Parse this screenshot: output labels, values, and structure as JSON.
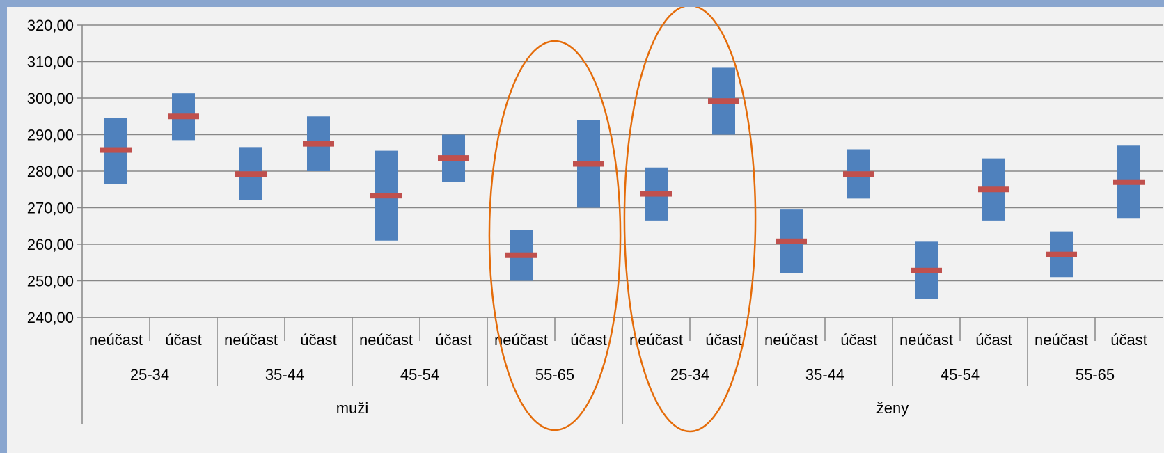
{
  "chart_data": {
    "type": "box",
    "title": "",
    "xlabel": "",
    "ylabel": "",
    "ylim": [
      240,
      320
    ],
    "yticks": [
      "240,00",
      "250,00",
      "260,00",
      "270,00",
      "280,00",
      "290,00",
      "300,00",
      "310,00",
      "320,00"
    ],
    "ytick_values": [
      240,
      250,
      260,
      270,
      280,
      290,
      300,
      310,
      320
    ],
    "grid": true,
    "groups": [
      {
        "label": "muži",
        "age_groups": [
          {
            "label": "25-34",
            "bars": [
              {
                "label": "neúčast",
                "low": 276.5,
                "high": 294.5,
                "mean": 285.8
              },
              {
                "label": "účast",
                "low": 288.5,
                "high": 301.3,
                "mean": 295.0
              }
            ]
          },
          {
            "label": "35-44",
            "bars": [
              {
                "label": "neúčast",
                "low": 272.0,
                "high": 286.6,
                "mean": 279.2
              },
              {
                "label": "účast",
                "low": 280.0,
                "high": 295.0,
                "mean": 287.5
              }
            ]
          },
          {
            "label": "45-54",
            "bars": [
              {
                "label": "neúčast",
                "low": 261.0,
                "high": 285.6,
                "mean": 273.3
              },
              {
                "label": "účast",
                "low": 277.0,
                "high": 290.0,
                "mean": 283.6
              }
            ]
          },
          {
            "label": "55-65",
            "bars": [
              {
                "label": "neúčast",
                "low": 250.0,
                "high": 264.0,
                "mean": 257.0
              },
              {
                "label": "účast",
                "low": 270.0,
                "high": 294.0,
                "mean": 282.0
              }
            ]
          }
        ]
      },
      {
        "label": "ženy",
        "age_groups": [
          {
            "label": "25-34",
            "bars": [
              {
                "label": "neúčast",
                "low": 266.5,
                "high": 281.0,
                "mean": 273.8
              },
              {
                "label": "účast",
                "low": 290.0,
                "high": 308.3,
                "mean": 299.2
              }
            ]
          },
          {
            "label": "35-44",
            "bars": [
              {
                "label": "neúčast",
                "low": 252.0,
                "high": 269.5,
                "mean": 260.8
              },
              {
                "label": "účast",
                "low": 272.5,
                "high": 286.0,
                "mean": 279.2
              }
            ]
          },
          {
            "label": "45-54",
            "bars": [
              {
                "label": "neúčast",
                "low": 245.0,
                "high": 260.7,
                "mean": 252.8
              },
              {
                "label": "účast",
                "low": 266.5,
                "high": 283.5,
                "mean": 275.0
              }
            ]
          },
          {
            "label": "55-65",
            "bars": [
              {
                "label": "neúčast",
                "low": 251.0,
                "high": 263.5,
                "mean": 257.2
              },
              {
                "label": "účast",
                "low": 267.0,
                "high": 287.0,
                "mean": 277.0
              }
            ]
          }
        ]
      }
    ],
    "highlighted_age_groups": [
      [
        0,
        3
      ],
      [
        1,
        0
      ]
    ],
    "colors": {
      "bar": "#4f81bd",
      "mean_marker": "#c0504d",
      "highlight_ellipse": "#e46c0a",
      "gridline": "#878787",
      "axis": "#878787",
      "frame": "#8aa6cf",
      "plot_background": "#f2f2f2"
    }
  }
}
